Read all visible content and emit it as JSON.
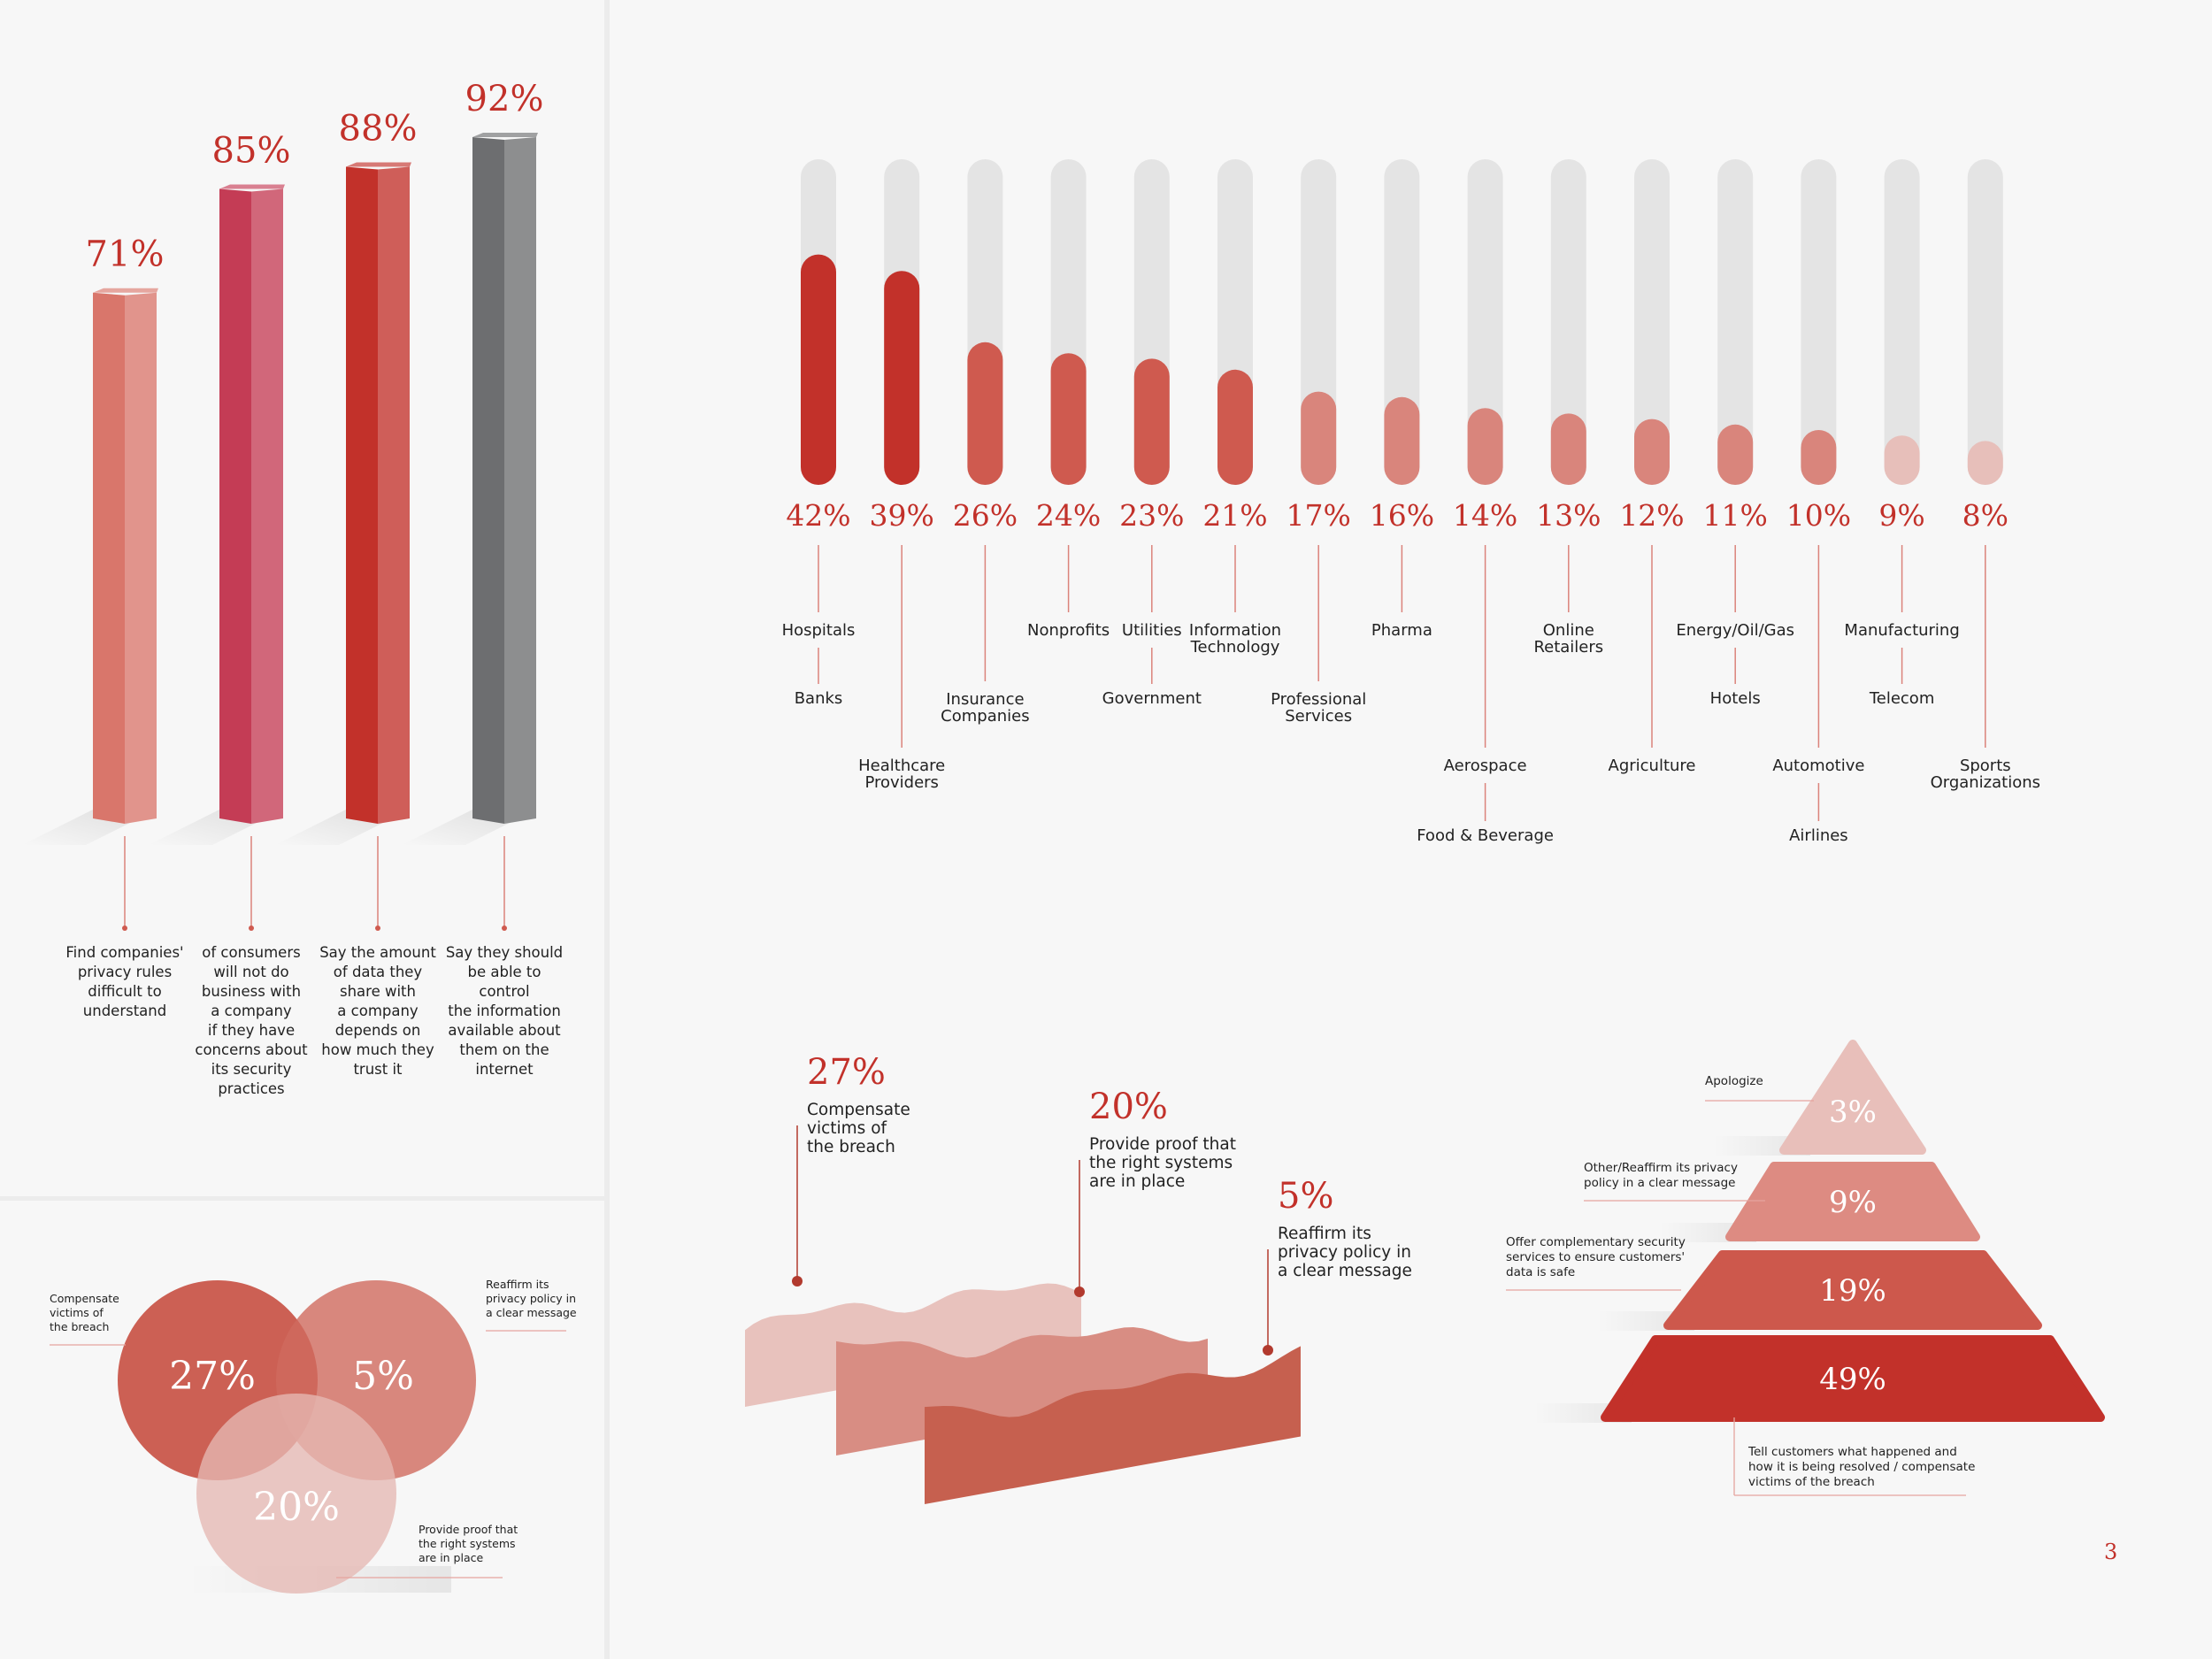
{
  "page_number": "3",
  "colors": {
    "red_dark": "#c2312a",
    "red": "#cf5a4f",
    "red_mid": "#d9857c",
    "red_light": "#e7bfba",
    "crimson": "#c43c55",
    "gray": "#6d6e70",
    "track": "#e4e4e4",
    "label": "#c2312a",
    "text": "#222222"
  },
  "chart_data": [
    {
      "type": "bar",
      "title": "",
      "categories": [
        "Find companies' privacy rules difficult to understand",
        "of consumers will not do business with a company if they have concerns about its security practices",
        "Say the amount of data they share with a company depends on how much they trust it",
        "Say they should be able to control the information available about them on the internet"
      ],
      "values": [
        71,
        85,
        88,
        92
      ],
      "value_labels": [
        "71%",
        "85%",
        "88%",
        "92%"
      ],
      "category_lines": [
        [
          "Find companies'",
          "privacy rules",
          "difficult to",
          "understand"
        ],
        [
          "of consumers",
          "will not do",
          "business with",
          "a company",
          "if they have",
          "concerns about",
          "its security",
          "practices"
        ],
        [
          "Say the amount",
          "of data they",
          "share with",
          "a company",
          "depends on",
          "how much they",
          "trust it"
        ],
        [
          "Say they should",
          "be able to",
          "control",
          "the information",
          "available about",
          "them on the",
          "internet"
        ]
      ],
      "bar_colors": [
        "#d9766b",
        "#c43c55",
        "#c2312a",
        "#6d6e70"
      ],
      "ylim": [
        0,
        100
      ]
    },
    {
      "type": "bar",
      "title": "",
      "values": [
        42,
        39,
        26,
        24,
        23,
        21,
        17,
        16,
        14,
        13,
        12,
        11,
        10,
        9,
        8
      ],
      "value_labels": [
        "42%",
        "39%",
        "26%",
        "24%",
        "23%",
        "21%",
        "17%",
        "16%",
        "14%",
        "13%",
        "12%",
        "11%",
        "10%",
        "9%",
        "8%"
      ],
      "columns": [
        {
          "primary": [
            "Hospitals"
          ],
          "secondary": [
            "Banks"
          ]
        },
        {
          "primary": [
            "Healthcare",
            "Providers"
          ],
          "secondary": []
        },
        {
          "primary": [
            "Insurance",
            "Companies"
          ],
          "secondary": []
        },
        {
          "primary": [
            "Nonprofits"
          ],
          "secondary": []
        },
        {
          "primary": [
            "Utilities"
          ],
          "secondary": [
            "Government"
          ]
        },
        {
          "primary": [
            "Information",
            "Technology"
          ],
          "secondary": []
        },
        {
          "primary": [
            "Professional",
            "Services"
          ],
          "secondary": []
        },
        {
          "primary": [
            "Pharma"
          ],
          "secondary": []
        },
        {
          "primary": [
            "Aerospace"
          ],
          "secondary": [
            "Food & Beverage"
          ]
        },
        {
          "primary": [
            "Online",
            "Retailers"
          ],
          "secondary": []
        },
        {
          "primary": [
            "Agriculture"
          ],
          "secondary": []
        },
        {
          "primary": [
            "Energy/Oil/Gas"
          ],
          "secondary": [
            "Hotels"
          ]
        },
        {
          "primary": [
            "Automotive"
          ],
          "secondary": [
            "Airlines"
          ]
        },
        {
          "primary": [
            "Manufacturing"
          ],
          "secondary": [
            "Telecom"
          ]
        },
        {
          "primary": [
            "Sports",
            "Organizations"
          ],
          "secondary": []
        }
      ],
      "ylim": [
        0,
        60
      ]
    },
    {
      "type": "area",
      "title": "",
      "series": [
        {
          "name": "Compensate victims of the breach",
          "value": 27,
          "value_label": "27%",
          "lines": [
            "Compensate",
            "victims of",
            "the breach"
          ]
        },
        {
          "name": "Provide proof that the right systems are in place",
          "value": 20,
          "value_label": "20%",
          "lines": [
            "Provide proof that",
            "the right systems",
            "are in place"
          ]
        },
        {
          "name": "Reaffirm its privacy policy in a clear message",
          "value": 5,
          "value_label": "5%",
          "lines": [
            "Reaffirm its",
            "privacy policy in",
            "a clear message"
          ]
        }
      ]
    },
    {
      "type": "pyramid",
      "title": "",
      "tiers": [
        {
          "value": 3,
          "value_label": "3%",
          "lines": [
            "Apologize"
          ]
        },
        {
          "value": 9,
          "value_label": "9%",
          "lines": [
            "Other/Reaffirm its privacy",
            "policy in a clear message"
          ]
        },
        {
          "value": 19,
          "value_label": "19%",
          "lines": [
            "Offer complementary security",
            "services to ensure customers'",
            "data is safe"
          ]
        },
        {
          "value": 49,
          "value_label": "49%",
          "lines": [
            "Tell customers what happened and",
            "how it is being resolved / compensate",
            "victims of the breach"
          ]
        }
      ]
    },
    {
      "type": "venn",
      "title": "",
      "sets": [
        {
          "value": 27,
          "value_label": "27%",
          "lines": [
            "Compensate",
            "victims of",
            "the breach"
          ]
        },
        {
          "value": 5,
          "value_label": "5%",
          "lines": [
            "Reaffirm its",
            "privacy policy in",
            "a clear message"
          ]
        },
        {
          "value": 20,
          "value_label": "20%",
          "lines": [
            "Provide proof that",
            "the right systems",
            "are in place"
          ]
        }
      ]
    }
  ]
}
